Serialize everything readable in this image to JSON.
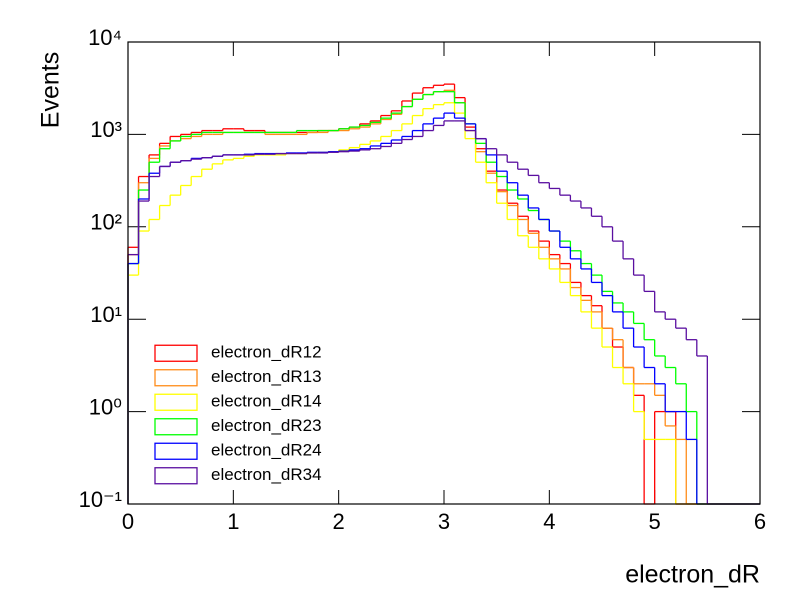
{
  "chart_data": {
    "type": "histogram",
    "xlabel": "electron_dR",
    "ylabel": "Events",
    "log_y": true,
    "legend": "lower left",
    "bins": [
      0,
      0.1,
      0.2,
      0.3,
      0.4,
      0.5,
      0.6,
      0.7,
      0.8,
      0.9,
      1,
      1.1,
      1.2,
      1.3,
      1.4,
      1.5,
      1.6,
      1.7,
      1.8,
      1.9,
      2,
      2.1,
      2.2,
      2.3,
      2.4,
      2.5,
      2.6,
      2.7,
      2.8,
      2.9,
      3,
      3.1,
      3.2,
      3.3,
      3.4,
      3.5,
      3.6,
      3.7,
      3.8,
      3.9,
      4,
      4.1,
      4.2,
      4.3,
      4.4,
      4.5,
      4.6,
      4.7,
      4.8,
      4.9,
      5,
      5.1,
      5.2,
      5.3,
      5.4,
      5.5,
      5.6,
      5.7,
      5.8,
      5.9,
      6
    ],
    "xlim": [
      0,
      6
    ],
    "xticks": [
      0,
      1,
      2,
      3,
      4,
      5,
      6
    ],
    "ylim": [
      0.1,
      10000
    ],
    "yticks": [
      {
        "value": 0.1,
        "label": "10⁻¹"
      },
      {
        "value": 1,
        "label": "10⁰"
      },
      {
        "value": 10,
        "label": "10¹"
      },
      {
        "value": 100,
        "label": "10²"
      },
      {
        "value": 1000,
        "label": "10³"
      },
      {
        "value": 10000,
        "label": "10⁴"
      }
    ],
    "series": [
      {
        "name": "electron_dR12",
        "color": "#ff0000",
        "values": [
          60,
          350,
          600,
          800,
          950,
          1000,
          1050,
          1100,
          1100,
          1150,
          1150,
          1100,
          1100,
          1050,
          1050,
          1050,
          1050,
          1050,
          1100,
          1100,
          1150,
          1200,
          1300,
          1400,
          1600,
          1800,
          2300,
          2800,
          3200,
          3400,
          3500,
          2500,
          1200,
          700,
          400,
          250,
          180,
          130,
          90,
          70,
          50,
          40,
          25,
          18,
          14,
          8,
          5,
          3,
          1.5,
          0,
          1,
          1,
          0,
          0,
          0,
          0,
          0,
          0,
          0,
          0
        ]
      },
      {
        "name": "electron_dR13",
        "color": "#ff8c1a",
        "values": [
          50,
          300,
          550,
          750,
          850,
          900,
          950,
          1000,
          1000,
          1050,
          1050,
          1050,
          1050,
          1000,
          1000,
          1000,
          1000,
          1050,
          1050,
          1100,
          1100,
          1150,
          1200,
          1300,
          1450,
          1650,
          2000,
          2400,
          2700,
          2900,
          3000,
          2200,
          1100,
          650,
          380,
          240,
          170,
          120,
          85,
          60,
          45,
          35,
          22,
          16,
          12,
          8,
          6,
          3,
          2,
          2,
          1.5,
          0.7,
          0.5,
          0,
          0,
          0,
          0,
          0,
          0,
          0
        ]
      },
      {
        "name": "electron_dR14",
        "color": "#ffff00",
        "values": [
          30,
          90,
          120,
          170,
          220,
          280,
          350,
          420,
          480,
          530,
          550,
          580,
          600,
          600,
          600,
          620,
          620,
          630,
          640,
          650,
          680,
          720,
          780,
          850,
          950,
          1100,
          1300,
          1600,
          1900,
          2100,
          2200,
          1700,
          900,
          500,
          300,
          180,
          120,
          80,
          60,
          45,
          35,
          25,
          18,
          12,
          8,
          5,
          3,
          2,
          1,
          0.5,
          0.5,
          0.5,
          0,
          0,
          0,
          0,
          0,
          0,
          0,
          0
        ]
      },
      {
        "name": "electron_dR23",
        "color": "#00ff00",
        "values": [
          40,
          250,
          500,
          700,
          850,
          950,
          1000,
          1050,
          1050,
          1050,
          1050,
          1050,
          1050,
          1050,
          1050,
          1050,
          1100,
          1100,
          1100,
          1100,
          1150,
          1200,
          1250,
          1350,
          1500,
          1700,
          2000,
          2400,
          2700,
          2900,
          2900,
          2200,
          1300,
          800,
          500,
          350,
          250,
          200,
          150,
          120,
          90,
          70,
          55,
          40,
          30,
          20,
          15,
          12,
          9,
          6,
          4,
          3,
          2,
          1,
          0,
          0,
          0,
          0,
          0,
          0
        ]
      },
      {
        "name": "electron_dR24",
        "color": "#0000ff",
        "values": [
          40,
          200,
          380,
          450,
          500,
          520,
          550,
          560,
          580,
          600,
          600,
          610,
          620,
          620,
          620,
          630,
          630,
          640,
          640,
          650,
          660,
          680,
          700,
          750,
          800,
          870,
          950,
          1100,
          1300,
          1500,
          1700,
          1500,
          1300,
          900,
          600,
          400,
          300,
          220,
          160,
          120,
          90,
          60,
          45,
          35,
          25,
          18,
          12,
          8,
          5,
          3,
          2,
          1,
          1,
          0.5,
          0,
          0,
          0,
          0,
          0,
          0
        ]
      },
      {
        "name": "electron_dR34",
        "color": "#5a0fa0",
        "values": [
          50,
          190,
          350,
          450,
          500,
          520,
          540,
          560,
          580,
          600,
          600,
          600,
          610,
          610,
          620,
          620,
          620,
          630,
          630,
          640,
          650,
          660,
          680,
          700,
          740,
          800,
          880,
          950,
          1100,
          1250,
          1400,
          1400,
          1100,
          900,
          700,
          600,
          500,
          420,
          360,
          300,
          260,
          220,
          190,
          160,
          130,
          100,
          70,
          45,
          30,
          20,
          12,
          10,
          8,
          6,
          4,
          0,
          0,
          0,
          0,
          0
        ]
      }
    ]
  }
}
